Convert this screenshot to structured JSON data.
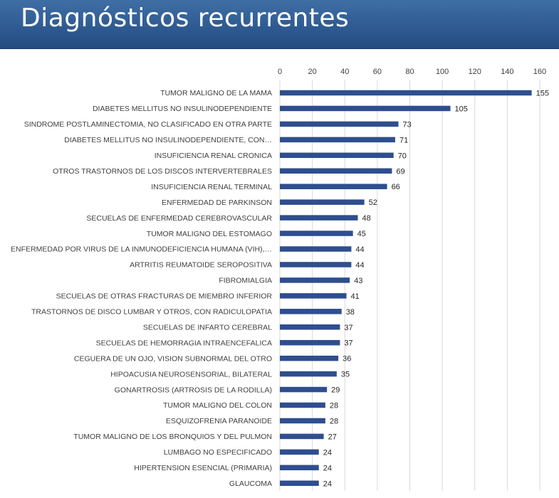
{
  "header": {
    "title": "Diagnósticos recurrentes"
  },
  "colors": {
    "header_bg": "#2f5b92",
    "bar": "#2f4e8f",
    "grid": "#d9d9d9",
    "text": "#404040"
  },
  "chart_data": {
    "type": "bar",
    "orientation": "horizontal",
    "title": "",
    "xlabel": "",
    "ylabel": "",
    "xlim": [
      0,
      160
    ],
    "ticks": [
      0,
      20,
      40,
      60,
      80,
      100,
      120,
      140,
      160
    ],
    "tick_labels": [
      "0",
      "20",
      "40",
      "60",
      "80",
      "100",
      "120",
      "140",
      "160"
    ],
    "axis_position": "top",
    "grid": true,
    "categories": [
      "TUMOR MALIGNO DE LA MAMA",
      "DIABETES MELLITUS NO INSULINODEPENDIENTE",
      "SINDROME POSTLAMINECTOMIA, NO CLASIFICADO EN OTRA PARTE",
      "DIABETES MELLITUS NO INSULINODEPENDIENTE, CON…",
      "INSUFICIENCIA RENAL CRONICA",
      "OTROS TRASTORNOS DE LOS DISCOS INTERVERTEBRALES",
      "INSUFICIENCIA RENAL TERMINAL",
      "ENFERMEDAD DE PARKINSON",
      "SECUELAS DE ENFERMEDAD CEREBROVASCULAR",
      "TUMOR MALIGNO DEL ESTOMAGO",
      "ENFERMEDAD POR VIRUS DE LA INMUNODEFICIENCIA HUMANA (VIH),…",
      "ARTRITIS REUMATOIDE SEROPOSITIVA",
      "FIBROMIALGIA",
      "SECUELAS DE OTRAS FRACTURAS DE MIEMBRO INFERIOR",
      "TRASTORNOS DE DISCO LUMBAR Y OTROS, CON RADICULOPATIA",
      "SECUELAS DE INFARTO CEREBRAL",
      "SECUELAS DE HEMORRAGIA INTRAENCEFALICA",
      "CEGUERA DE UN OJO, VISION SUBNORMAL DEL OTRO",
      "HIPOACUSIA NEUROSENSORIAL, BILATERAL",
      "GONARTROSIS (ARTROSIS DE LA RODILLA)",
      "TUMOR MALIGNO DEL COLON",
      "ESQUIZOFRENIA PARANOIDE",
      "TUMOR MALIGNO DE LOS BRONQUIOS Y DEL PULMON",
      "LUMBAGO NO ESPECIFICADO",
      "HIPERTENSION ESENCIAL (PRIMARIA)",
      "GLAUCOMA"
    ],
    "values": [
      155,
      105,
      73,
      71,
      70,
      69,
      66,
      52,
      48,
      45,
      44,
      44,
      43,
      41,
      38,
      37,
      37,
      36,
      35,
      29,
      28,
      28,
      27,
      24,
      24,
      24
    ]
  }
}
